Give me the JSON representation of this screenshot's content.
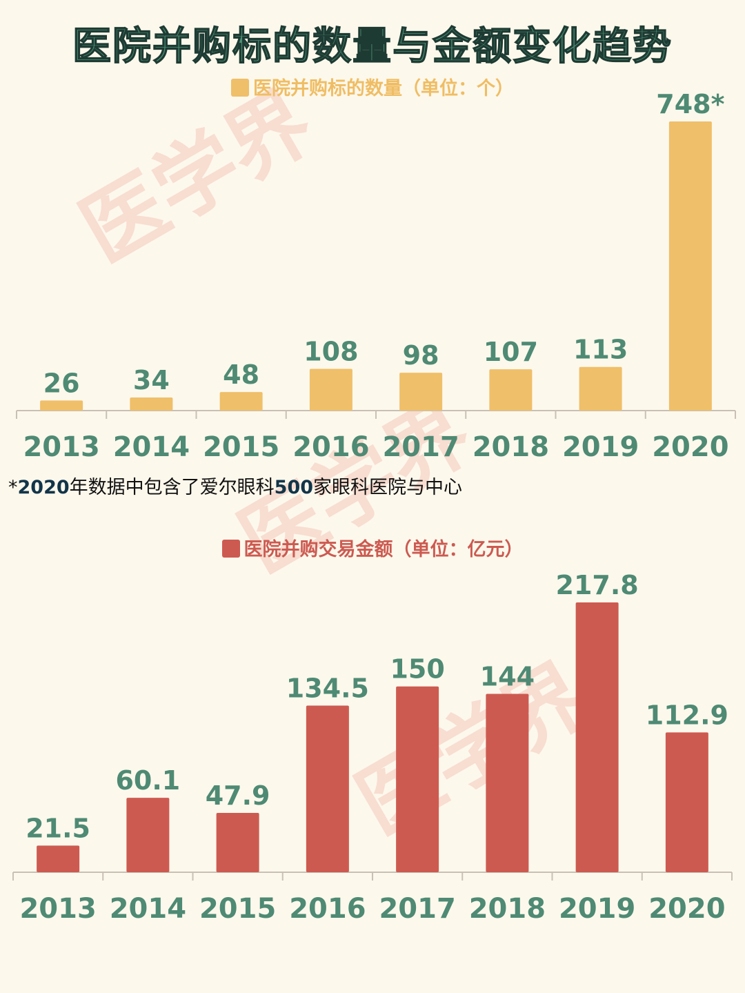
{
  "title": "医院并购标的数量与金额变化趋势",
  "watermark": "医学界",
  "note": {
    "asterisk": "*",
    "year": "2020",
    "part1": "年数据中包含了爱尔眼科",
    "count": "500",
    "part2": "家眼科医院与中心"
  },
  "colors": {
    "title": "#4e9277",
    "count_bar": "#efbf69",
    "amount_bar": "#cd5a50",
    "label": "#4e8a74",
    "axis": "#c8c0b4",
    "background": "#fdf8ec"
  },
  "chart_data": [
    {
      "type": "bar",
      "legend": "医院并购标的数量（单位：个）",
      "categories": [
        "2013",
        "2014",
        "2015",
        "2016",
        "2017",
        "2018",
        "2019",
        "2020"
      ],
      "values": [
        26,
        34,
        48,
        108,
        98,
        107,
        113,
        748
      ],
      "value_labels": [
        "26",
        "34",
        "48",
        "108",
        "98",
        "107",
        "113",
        "748*"
      ],
      "ylim": [
        0,
        748
      ],
      "grid": false,
      "legend_position": "top-center"
    },
    {
      "type": "bar",
      "legend": "医院并购交易金额（单位：亿元）",
      "categories": [
        "2013",
        "2014",
        "2015",
        "2016",
        "2017",
        "2018",
        "2019",
        "2020"
      ],
      "values": [
        21.5,
        60.1,
        47.9,
        134.5,
        150,
        144,
        217.8,
        112.9
      ],
      "value_labels": [
        "21.5",
        "60.1",
        "47.9",
        "134.5",
        "150",
        "144",
        "217.8",
        "112.9"
      ],
      "ylim": [
        0,
        217.8
      ],
      "grid": false,
      "legend_position": "top-center"
    }
  ]
}
